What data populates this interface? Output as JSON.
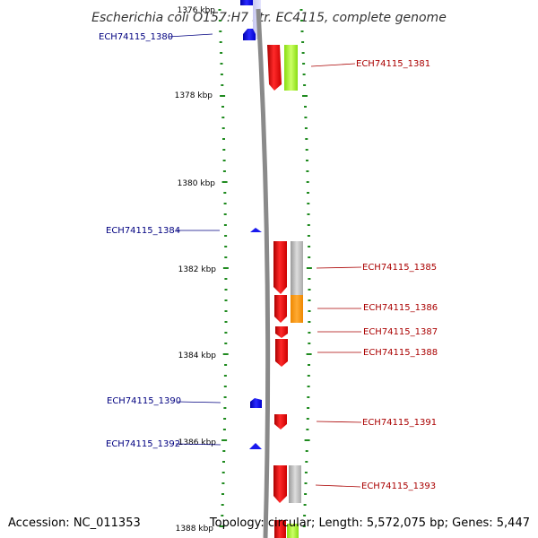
{
  "title": "Escherichia coli O157:H7 str. EC4115, complete genome",
  "footer": {
    "accession": "Accession: NC_011353",
    "topology": "Topology: circular; Length: 5,572,075 bp; Genes: 5,447"
  },
  "colors": {
    "backbone": "#8a8a8a",
    "tick": "#1f8a1f",
    "reverse_gene": "#ff0000",
    "forward_gene": "#0000ff",
    "left_label": "#000080",
    "right_label": "#aa0000"
  },
  "scale": {
    "unit": "kbp",
    "major_ticks": [
      {
        "value": 1376,
        "label": "1376 kbp"
      },
      {
        "value": 1378,
        "label": "1378 kbp"
      },
      {
        "value": 1380,
        "label": "1380 kbp"
      },
      {
        "value": 1382,
        "label": "1382 kbp"
      },
      {
        "value": 1384,
        "label": "1384 kbp"
      },
      {
        "value": 1386,
        "label": "1386 kbp"
      },
      {
        "value": 1388,
        "label": "1388 kbp"
      }
    ]
  },
  "genes_forward": [
    {
      "label": "ECH74115_1380"
    },
    {
      "label": "ECH74115_1384"
    },
    {
      "label": "ECH74115_1390"
    },
    {
      "label": "ECH74115_1392"
    }
  ],
  "genes_reverse": [
    {
      "label": "ECH74115_1381",
      "cog_color": "#99ee22"
    },
    {
      "label": "ECH74115_1385",
      "cog_color": "#b4b4b4"
    },
    {
      "label": "ECH74115_1386",
      "cog_color": "#ff9900"
    },
    {
      "label": "ECH74115_1387",
      "cog_color": ""
    },
    {
      "label": "ECH74115_1388",
      "cog_color": ""
    },
    {
      "label": "ECH74115_1391",
      "cog_color": ""
    },
    {
      "label": "ECH74115_1393",
      "cog_color": "#b4b4b4"
    }
  ]
}
